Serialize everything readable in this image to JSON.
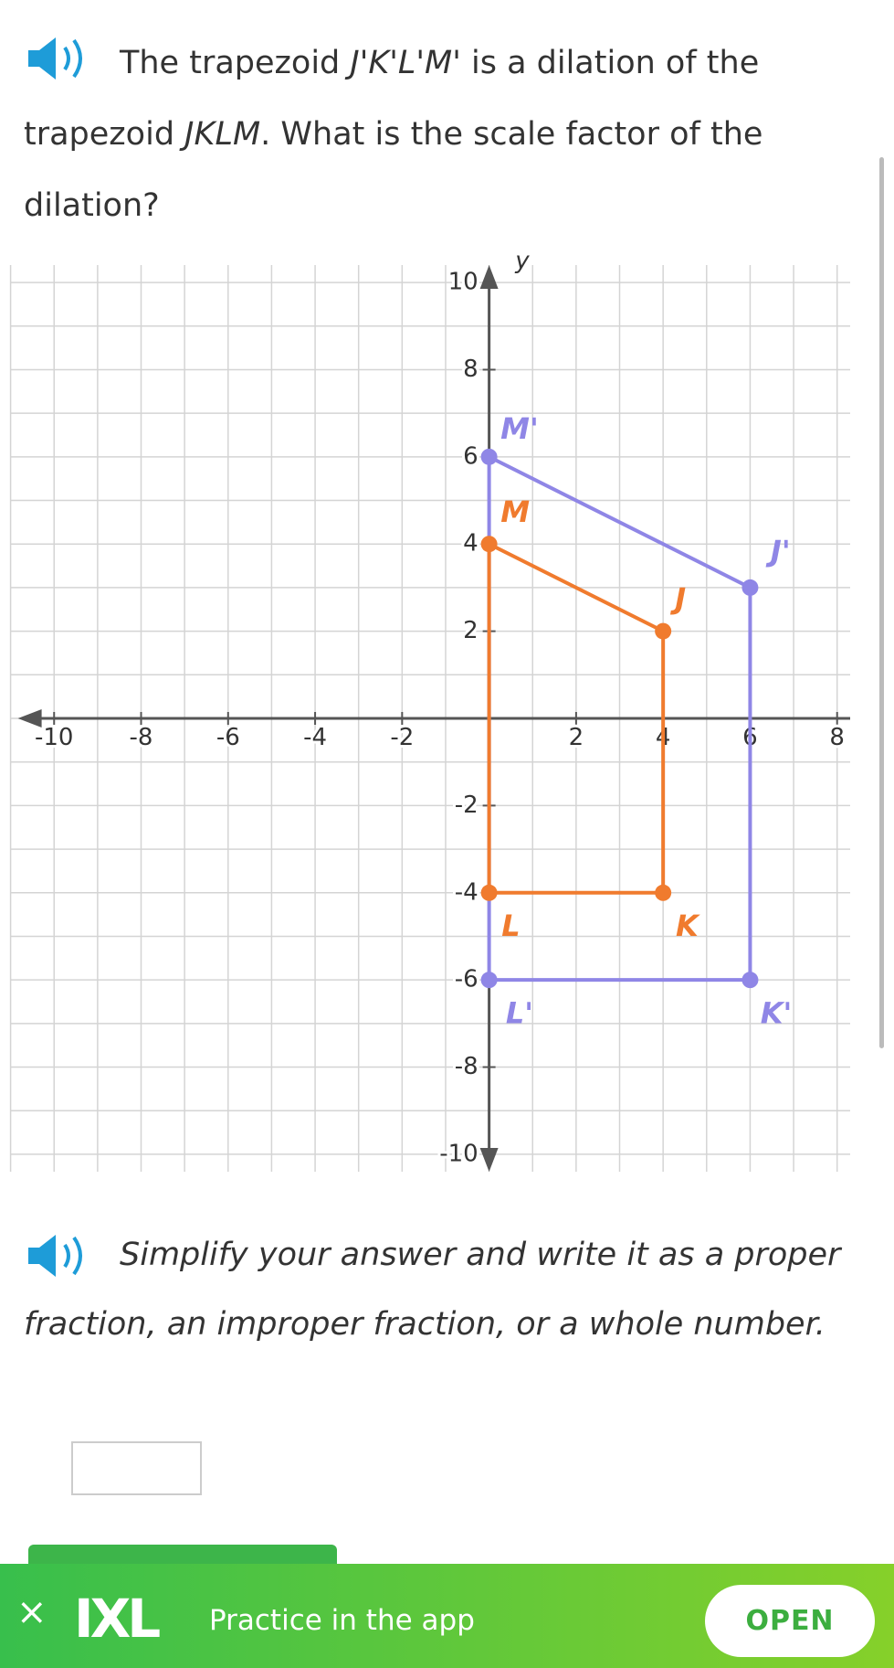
{
  "question": {
    "parts": [
      "The trapezoid ",
      "J'K'L'M'",
      " is a dilation of the trapezoid ",
      "JKLM",
      ". What is the scale factor of the dilation?"
    ]
  },
  "graph": {
    "xlim": [
      -11,
      8.3
    ],
    "ylim": [
      -10.4,
      10.4
    ],
    "xticks": [
      -10,
      -8,
      -6,
      -4,
      -2,
      2,
      4,
      6,
      8
    ],
    "yticks": [
      10,
      8,
      6,
      4,
      2,
      -2,
      -4,
      -6,
      -8,
      -10
    ],
    "ylabel": "y",
    "shapes": [
      {
        "name": "J'K'L'M'",
        "color": "#8f86e6",
        "vertices": [
          {
            "label": "J'",
            "x": 6,
            "y": 3
          },
          {
            "label": "K'",
            "x": 6,
            "y": -6
          },
          {
            "label": "L'",
            "x": 0,
            "y": -6
          },
          {
            "label": "M'",
            "x": 0,
            "y": 6
          }
        ]
      },
      {
        "name": "JKLM",
        "color": "#f07b2e",
        "vertices": [
          {
            "label": "J",
            "x": 4,
            "y": 2
          },
          {
            "label": "K",
            "x": 4,
            "y": -4
          },
          {
            "label": "L",
            "x": 0,
            "y": -4
          },
          {
            "label": "M",
            "x": 0,
            "y": 4
          }
        ]
      }
    ]
  },
  "instruction": "Simplify your answer and write it as a proper fraction, an improper fraction, or a whole number.",
  "banner": {
    "close": "×",
    "logo": "IXL",
    "text": "Practice in the app",
    "button": "OPEN"
  }
}
